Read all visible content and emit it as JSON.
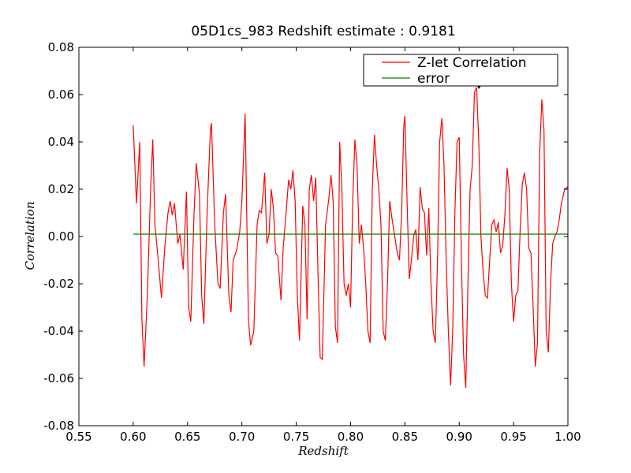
{
  "chart_data": {
    "type": "line",
    "title": "05D1cs_983 Redshift estimate : 0.9181",
    "xlabel": "Redshift",
    "ylabel": "Correlation",
    "xlim": [
      0.55,
      1.0
    ],
    "ylim": [
      -0.08,
      0.08
    ],
    "xticks": [
      "0.55",
      "0.60",
      "0.65",
      "0.70",
      "0.75",
      "0.80",
      "0.85",
      "0.90",
      "0.95",
      "1.00"
    ],
    "yticks": [
      "0.08",
      "0.06",
      "0.04",
      "0.02",
      "0.00",
      "-0.02",
      "-0.04",
      "-0.06",
      "-0.08"
    ],
    "grid": false,
    "legend_position": "top-right",
    "series": [
      {
        "name": "Z-let Correlation",
        "color": "#ff0000",
        "points": [
          [
            0.6,
            0.047
          ],
          [
            0.603,
            0.014
          ],
          [
            0.606,
            0.04
          ],
          [
            0.608,
            -0.035
          ],
          [
            0.61,
            -0.055
          ],
          [
            0.613,
            -0.025
          ],
          [
            0.616,
            0.02
          ],
          [
            0.618,
            0.041
          ],
          [
            0.62,
            0.005
          ],
          [
            0.623,
            -0.01
          ],
          [
            0.626,
            -0.026
          ],
          [
            0.629,
            -0.005
          ],
          [
            0.632,
            0.01
          ],
          [
            0.634,
            0.015
          ],
          [
            0.636,
            0.009
          ],
          [
            0.638,
            0.014
          ],
          [
            0.641,
            -0.003
          ],
          [
            0.643,
            0.001
          ],
          [
            0.646,
            -0.014
          ],
          [
            0.649,
            0.019
          ],
          [
            0.651,
            -0.03
          ],
          [
            0.653,
            -0.036
          ],
          [
            0.656,
            0.01
          ],
          [
            0.658,
            0.031
          ],
          [
            0.661,
            0.018
          ],
          [
            0.663,
            -0.025
          ],
          [
            0.665,
            -0.037
          ],
          [
            0.668,
            0.01
          ],
          [
            0.671,
            0.045
          ],
          [
            0.672,
            0.048
          ],
          [
            0.675,
            0.005
          ],
          [
            0.678,
            -0.02
          ],
          [
            0.68,
            -0.022
          ],
          [
            0.683,
            0.01
          ],
          [
            0.685,
            0.018
          ],
          [
            0.688,
            -0.025
          ],
          [
            0.69,
            -0.032
          ],
          [
            0.692,
            -0.01
          ],
          [
            0.695,
            -0.006
          ],
          [
            0.698,
            0.002
          ],
          [
            0.7,
            0.015
          ],
          [
            0.703,
            0.052
          ],
          [
            0.706,
            -0.035
          ],
          [
            0.708,
            -0.046
          ],
          [
            0.711,
            -0.04
          ],
          [
            0.714,
            0.005
          ],
          [
            0.716,
            0.011
          ],
          [
            0.718,
            0.01
          ],
          [
            0.721,
            0.027
          ],
          [
            0.723,
            -0.003
          ],
          [
            0.725,
            0.001
          ],
          [
            0.727,
            0.02
          ],
          [
            0.729,
            0.012
          ],
          [
            0.731,
            -0.007
          ],
          [
            0.733,
            -0.008
          ],
          [
            0.736,
            -0.027
          ],
          [
            0.738,
            -0.005
          ],
          [
            0.741,
            0.012
          ],
          [
            0.743,
            0.024
          ],
          [
            0.745,
            0.02
          ],
          [
            0.747,
            0.028
          ],
          [
            0.749,
            0.015
          ],
          [
            0.751,
            -0.025
          ],
          [
            0.753,
            -0.044
          ],
          [
            0.756,
            0.013
          ],
          [
            0.758,
            0.005
          ],
          [
            0.76,
            -0.035
          ],
          [
            0.762,
            0.02
          ],
          [
            0.764,
            0.026
          ],
          [
            0.766,
            0.015
          ],
          [
            0.768,
            0.025
          ],
          [
            0.77,
            -0.015
          ],
          [
            0.772,
            -0.051
          ],
          [
            0.774,
            -0.052
          ],
          [
            0.777,
            0.005
          ],
          [
            0.78,
            0.016
          ],
          [
            0.782,
            0.026
          ],
          [
            0.784,
            0.015
          ],
          [
            0.786,
            -0.038
          ],
          [
            0.788,
            -0.045
          ],
          [
            0.79,
            0.04
          ],
          [
            0.792,
            0.02
          ],
          [
            0.794,
            -0.02
          ],
          [
            0.796,
            -0.025
          ],
          [
            0.798,
            -0.02
          ],
          [
            0.8,
            -0.03
          ],
          [
            0.802,
            0.015
          ],
          [
            0.804,
            0.041
          ],
          [
            0.806,
            0.03
          ],
          [
            0.808,
            -0.003
          ],
          [
            0.81,
            0.005
          ],
          [
            0.812,
            -0.005
          ],
          [
            0.814,
            -0.02
          ],
          [
            0.816,
            -0.04
          ],
          [
            0.818,
            -0.045
          ],
          [
            0.82,
            0.02
          ],
          [
            0.822,
            0.043
          ],
          [
            0.824,
            0.03
          ],
          [
            0.826,
            0.02
          ],
          [
            0.828,
            0.005
          ],
          [
            0.83,
            -0.04
          ],
          [
            0.832,
            -0.044
          ],
          [
            0.834,
            -0.02
          ],
          [
            0.836,
            0.015
          ],
          [
            0.838,
            0.008
          ],
          [
            0.84,
            0.002
          ],
          [
            0.843,
            -0.007
          ],
          [
            0.845,
            -0.01
          ],
          [
            0.847,
            0.01
          ],
          [
            0.849,
            0.047
          ],
          [
            0.85,
            0.051
          ],
          [
            0.852,
            0.015
          ],
          [
            0.854,
            -0.018
          ],
          [
            0.856,
            -0.01
          ],
          [
            0.858,
            0.0
          ],
          [
            0.86,
            0.003
          ],
          [
            0.862,
            -0.01
          ],
          [
            0.864,
            0.021
          ],
          [
            0.866,
            0.012
          ],
          [
            0.868,
            0.01
          ],
          [
            0.87,
            -0.008
          ],
          [
            0.872,
            0.012
          ],
          [
            0.874,
            -0.02
          ],
          [
            0.876,
            -0.04
          ],
          [
            0.878,
            -0.045
          ],
          [
            0.88,
            -0.01
          ],
          [
            0.882,
            0.04
          ],
          [
            0.884,
            0.05
          ],
          [
            0.886,
            0.03
          ],
          [
            0.888,
            -0.01
          ],
          [
            0.89,
            -0.04
          ],
          [
            0.892,
            -0.063
          ],
          [
            0.894,
            -0.04
          ],
          [
            0.896,
            0.01
          ],
          [
            0.898,
            0.04
          ],
          [
            0.9,
            0.042
          ],
          [
            0.902,
            -0.01
          ],
          [
            0.904,
            -0.05
          ],
          [
            0.906,
            -0.064
          ],
          [
            0.908,
            -0.02
          ],
          [
            0.91,
            0.02
          ],
          [
            0.912,
            0.03
          ],
          [
            0.914,
            0.061
          ],
          [
            0.916,
            0.063
          ],
          [
            0.918,
            0.04
          ],
          [
            0.92,
            0.0
          ],
          [
            0.922,
            -0.015
          ],
          [
            0.924,
            -0.025
          ],
          [
            0.926,
            -0.026
          ],
          [
            0.928,
            -0.01
          ],
          [
            0.93,
            0.005
          ],
          [
            0.932,
            0.007
          ],
          [
            0.934,
            0.002
          ],
          [
            0.936,
            0.006
          ],
          [
            0.938,
            -0.007
          ],
          [
            0.94,
            -0.004
          ],
          [
            0.942,
            0.009
          ],
          [
            0.944,
            0.029
          ],
          [
            0.946,
            0.02
          ],
          [
            0.948,
            -0.02
          ],
          [
            0.95,
            -0.036
          ],
          [
            0.952,
            -0.025
          ],
          [
            0.954,
            -0.023
          ],
          [
            0.956,
            0.002
          ],
          [
            0.958,
            0.022
          ],
          [
            0.96,
            0.027
          ],
          [
            0.962,
            0.02
          ],
          [
            0.964,
            -0.005
          ],
          [
            0.966,
            -0.007
          ],
          [
            0.968,
            -0.03
          ],
          [
            0.97,
            -0.055
          ],
          [
            0.972,
            -0.045
          ],
          [
            0.974,
            0.035
          ],
          [
            0.976,
            0.058
          ],
          [
            0.978,
            0.045
          ],
          [
            0.98,
            -0.04
          ],
          [
            0.982,
            -0.049
          ],
          [
            0.984,
            -0.02
          ],
          [
            0.986,
            -0.003
          ],
          [
            0.988,
            0.0
          ],
          [
            0.99,
            0.002
          ],
          [
            0.992,
            0.007
          ],
          [
            0.994,
            0.014
          ],
          [
            0.997,
            0.02
          ],
          [
            1.0,
            0.021
          ]
        ]
      },
      {
        "name": "error",
        "color": "#008000",
        "points": [
          [
            0.6,
            0.001
          ],
          [
            1.0,
            0.001
          ]
        ]
      }
    ],
    "annotations": [
      {
        "type": "triangle-marker",
        "x": 0.9181,
        "y": 0.063,
        "color": "#000000"
      }
    ]
  }
}
